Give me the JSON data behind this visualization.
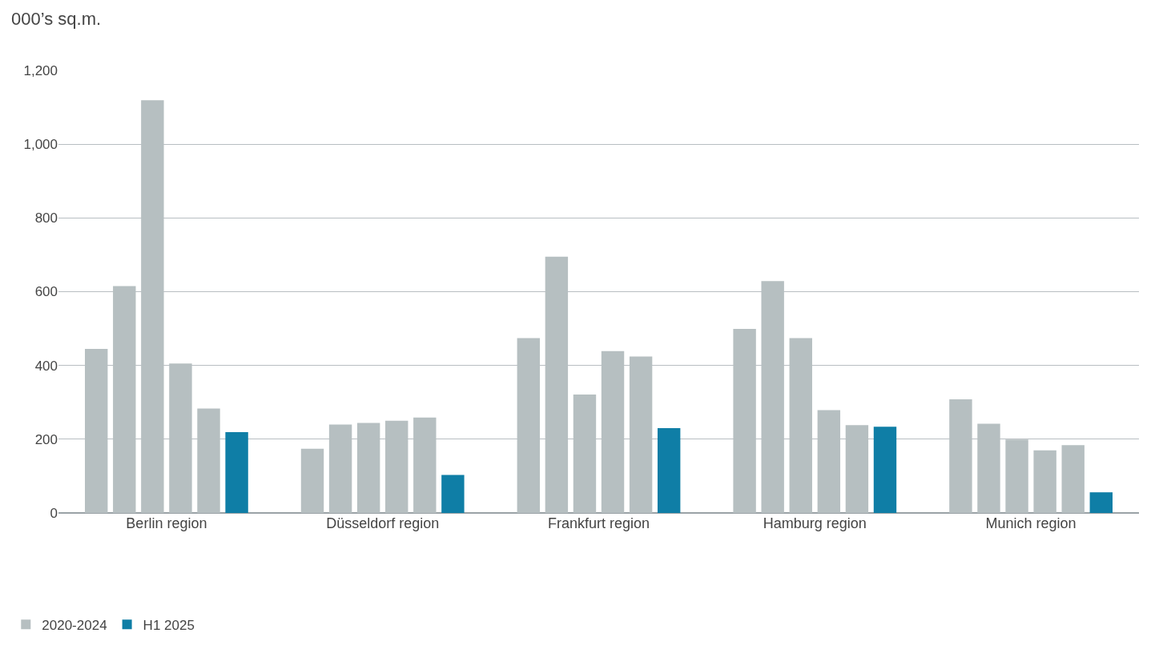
{
  "chart_data": {
    "type": "bar",
    "ylabel": "000’s sq.m.",
    "categories": [
      "Berlin region",
      "Düsseldorf region",
      "Frankfurt region",
      "Hamburg region",
      "Munich region"
    ],
    "series": [
      {
        "name": "2020-2024",
        "color": "#b6bfc1",
        "values": [
          445,
          174,
          474,
          499,
          308
        ]
      },
      {
        "color": "#b6bfc1",
        "values": [
          615,
          240,
          695,
          629,
          242
        ]
      },
      {
        "color": "#b6bfc1",
        "values": [
          1119,
          244,
          321,
          474,
          199
        ]
      },
      {
        "color": "#b6bfc1",
        "values": [
          405,
          250,
          439,
          279,
          170
        ]
      },
      {
        "color": "#b6bfc1",
        "values": [
          283,
          259,
          424,
          238,
          184
        ]
      },
      {
        "name": "H1 2025",
        "color": "#0f7ea6",
        "values": [
          219,
          103,
          230,
          234,
          56
        ]
      }
    ],
    "ylim": [
      0,
      1200
    ],
    "yticks": [
      0,
      {
        "value": 200,
        "label": "200"
      },
      {
        "value": 400,
        "label": "400"
      },
      {
        "value": 600,
        "label": "600"
      },
      {
        "value": 800,
        "label": "800"
      },
      {
        "value": 1000,
        "label": "1,000"
      },
      {
        "value": 1200,
        "label": "1,200"
      }
    ],
    "grid": "y",
    "legend": "bottom left"
  }
}
